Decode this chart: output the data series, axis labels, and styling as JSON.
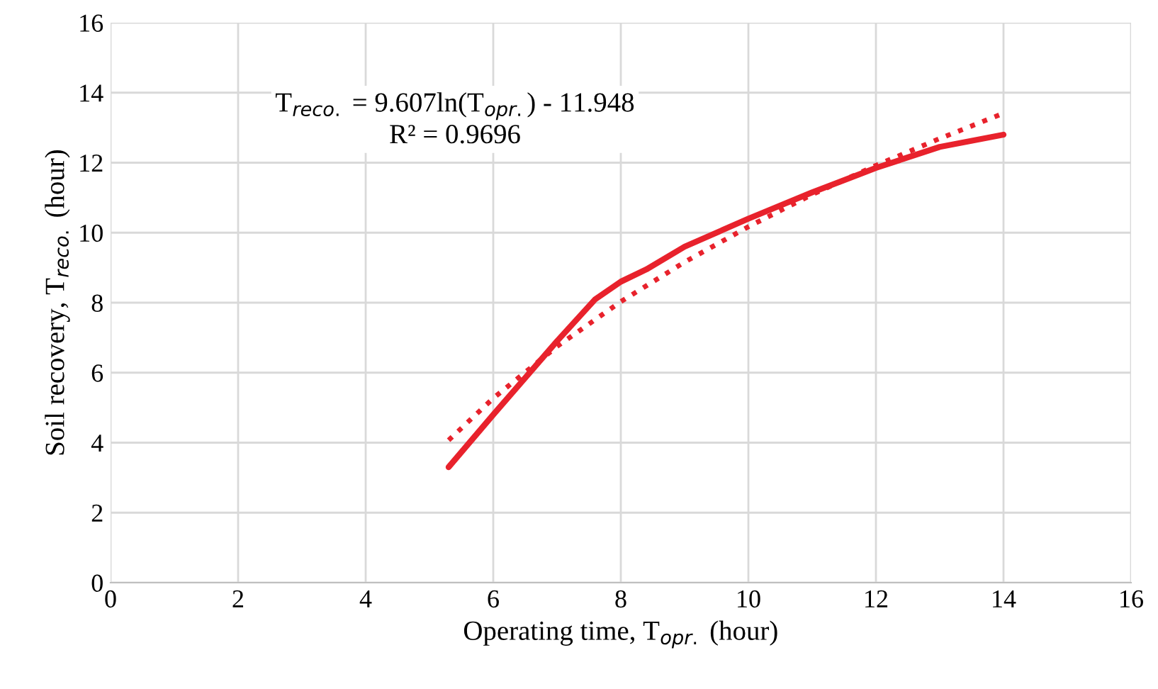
{
  "chart_data": {
    "type": "line",
    "xlabel": "Operating time, T$_{opr.}$ (hour)",
    "ylabel": "Soil recovery, T$_{reco.}$ (hour)",
    "xlim": [
      0,
      16
    ],
    "xticks": [
      0,
      2,
      4,
      6,
      8,
      10,
      12,
      14,
      16
    ],
    "ylim": [
      0,
      16
    ],
    "yticks": [
      0,
      2,
      4,
      6,
      8,
      10,
      12,
      14,
      16
    ],
    "grid": true,
    "marker": "none",
    "series": [
      {
        "color": "#e8222c",
        "line_style": "solid",
        "x": [
          5.3,
          6,
          7,
          7.6,
          8,
          8.4,
          9,
          10,
          11,
          12,
          13,
          14
        ],
        "values": [
          3.3,
          4.8,
          6.9,
          8.1,
          8.6,
          8.95,
          9.6,
          10.4,
          11.15,
          11.85,
          12.45,
          12.8
        ]
      },
      {
        "color": "#e8222c",
        "line_style": "dotted",
        "x": [
          5.3,
          6,
          7,
          8,
          9,
          10,
          11,
          12,
          13,
          14
        ],
        "values": [
          4.07,
          5.27,
          6.75,
          8.03,
          9.16,
          10.17,
          11.09,
          11.92,
          12.69,
          13.41
        ]
      }
    ],
    "annotations": [
      "T$_{reco.}$ = 9.607ln(T$_{opr.}$) - 11.948\nR² = 0.9696"
    ]
  }
}
